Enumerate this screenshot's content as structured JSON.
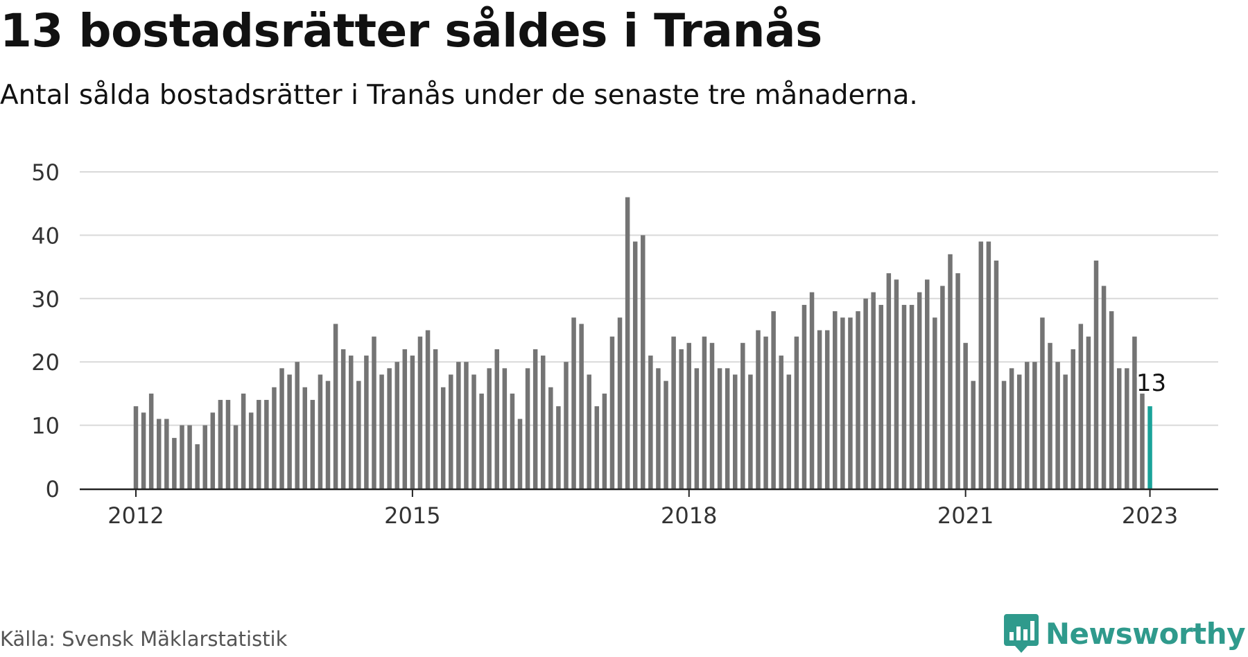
{
  "title": "13 bostadsrätter såldes i Tranås",
  "subtitle": "Antal sålda bostadsrätter i Tranås under de senaste tre månaderna.",
  "source": "Källa: Svensk Mäklarstatistik",
  "brand": {
    "name": "Newsworthy",
    "icon": "newsworthy-logo-icon"
  },
  "colors": {
    "bar": "#747474",
    "highlight": "#1aa39a",
    "grid": "#d9d9d9",
    "axis": "#222222",
    "brand": "#2f9a8c"
  },
  "chart_data": {
    "type": "bar",
    "title": "13 bostadsrätter såldes i Tranås",
    "subtitle": "Antal sålda bostadsrätter i Tranås under de senaste tre månaderna.",
    "xlabel": "",
    "ylabel": "",
    "ylim": [
      0,
      50
    ],
    "yticks": [
      0,
      10,
      20,
      30,
      40,
      50
    ],
    "xtick_labels": [
      "2012",
      "2015",
      "2018",
      "2021",
      "2023"
    ],
    "xtick_months": [
      "2012-01",
      "2015-01",
      "2018-01",
      "2021-01",
      "2023-01"
    ],
    "grid": true,
    "start_month": "2012-01",
    "end_month": "2023-01",
    "values": [
      13,
      12,
      15,
      11,
      11,
      8,
      10,
      10,
      7,
      10,
      12,
      14,
      14,
      10,
      15,
      12,
      14,
      14,
      16,
      19,
      18,
      20,
      16,
      14,
      18,
      17,
      26,
      22,
      21,
      17,
      21,
      24,
      18,
      19,
      20,
      22,
      21,
      24,
      25,
      22,
      16,
      18,
      20,
      20,
      18,
      15,
      19,
      22,
      19,
      15,
      11,
      19,
      22,
      21,
      16,
      13,
      20,
      27,
      26,
      18,
      13,
      15,
      24,
      27,
      46,
      39,
      40,
      21,
      19,
      17,
      24,
      22,
      23,
      19,
      24,
      23,
      19,
      19,
      18,
      23,
      18,
      25,
      24,
      28,
      21,
      18,
      24,
      29,
      31,
      25,
      25,
      28,
      27,
      27,
      28,
      30,
      31,
      29,
      34,
      33,
      29,
      29,
      31,
      33,
      27,
      32,
      37,
      34,
      23,
      17,
      39,
      39,
      36,
      17,
      19,
      18,
      20,
      20,
      27,
      23,
      20,
      18,
      22,
      26,
      24,
      36,
      32,
      28,
      19,
      19,
      24,
      15,
      13
    ],
    "highlight": {
      "label": "13",
      "month": "2023-01",
      "value": 13
    }
  }
}
